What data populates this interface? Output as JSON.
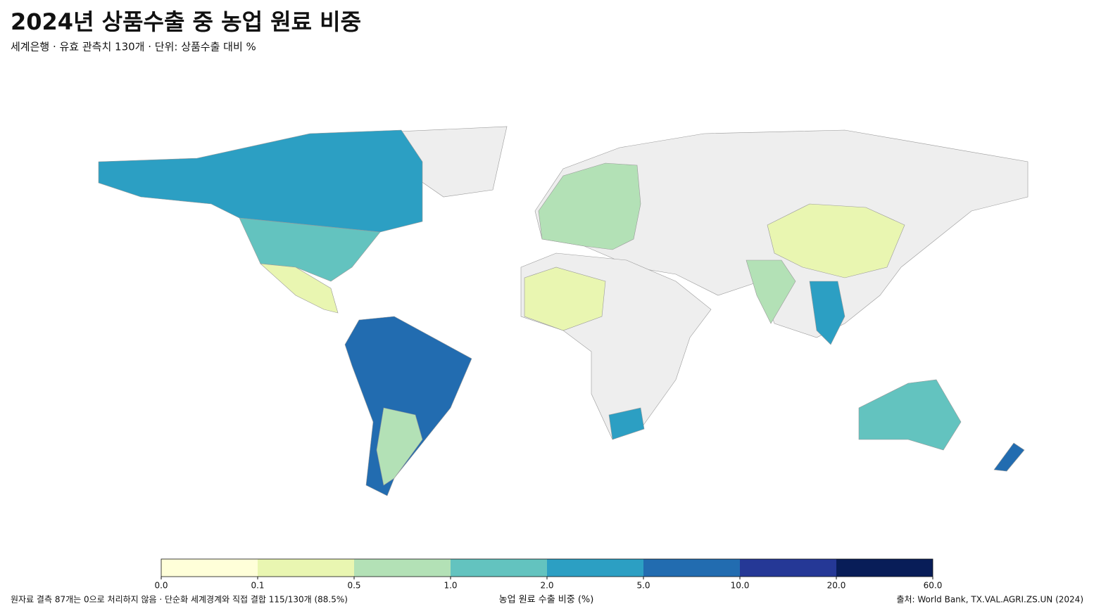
{
  "chart_data": {
    "type": "choropleth",
    "title": "2024년 상품수출 중 농업 원료 비중",
    "subtitle": "세계은행 · 유효 관측치 130개 · 단위: 상품수출 대비 %",
    "legend": {
      "title": "농업 원료 수출 비중 (%)",
      "bins": [
        {
          "value": 0,
          "label": "0.0"
        },
        {
          "value": 0.1,
          "label": "0.1"
        },
        {
          "value": 0.5,
          "label": "0.5"
        },
        {
          "value": 1,
          "label": "1.0"
        },
        {
          "value": 2,
          "label": "2.0"
        },
        {
          "value": 5,
          "label": "5.0"
        },
        {
          "value": 10,
          "label": "10.0"
        },
        {
          "value": 20,
          "label": "20.0"
        },
        {
          "value": 60,
          "label": "60.0"
        }
      ],
      "colors": [
        "#ffffd9",
        "#e9f6b1",
        "#b3e1b6",
        "#63c3bf",
        "#2c9fc3",
        "#226cb0",
        "#253896",
        "#081d58"
      ]
    },
    "note": "원자료 결측 87개는 0으로 처리하지 않음 · 단순화 세계경계와 직접 결합 115/130개 (88.5%)",
    "source": "출처: World Bank, TX.VAL.AGRI.ZS.UN (2024)"
  }
}
